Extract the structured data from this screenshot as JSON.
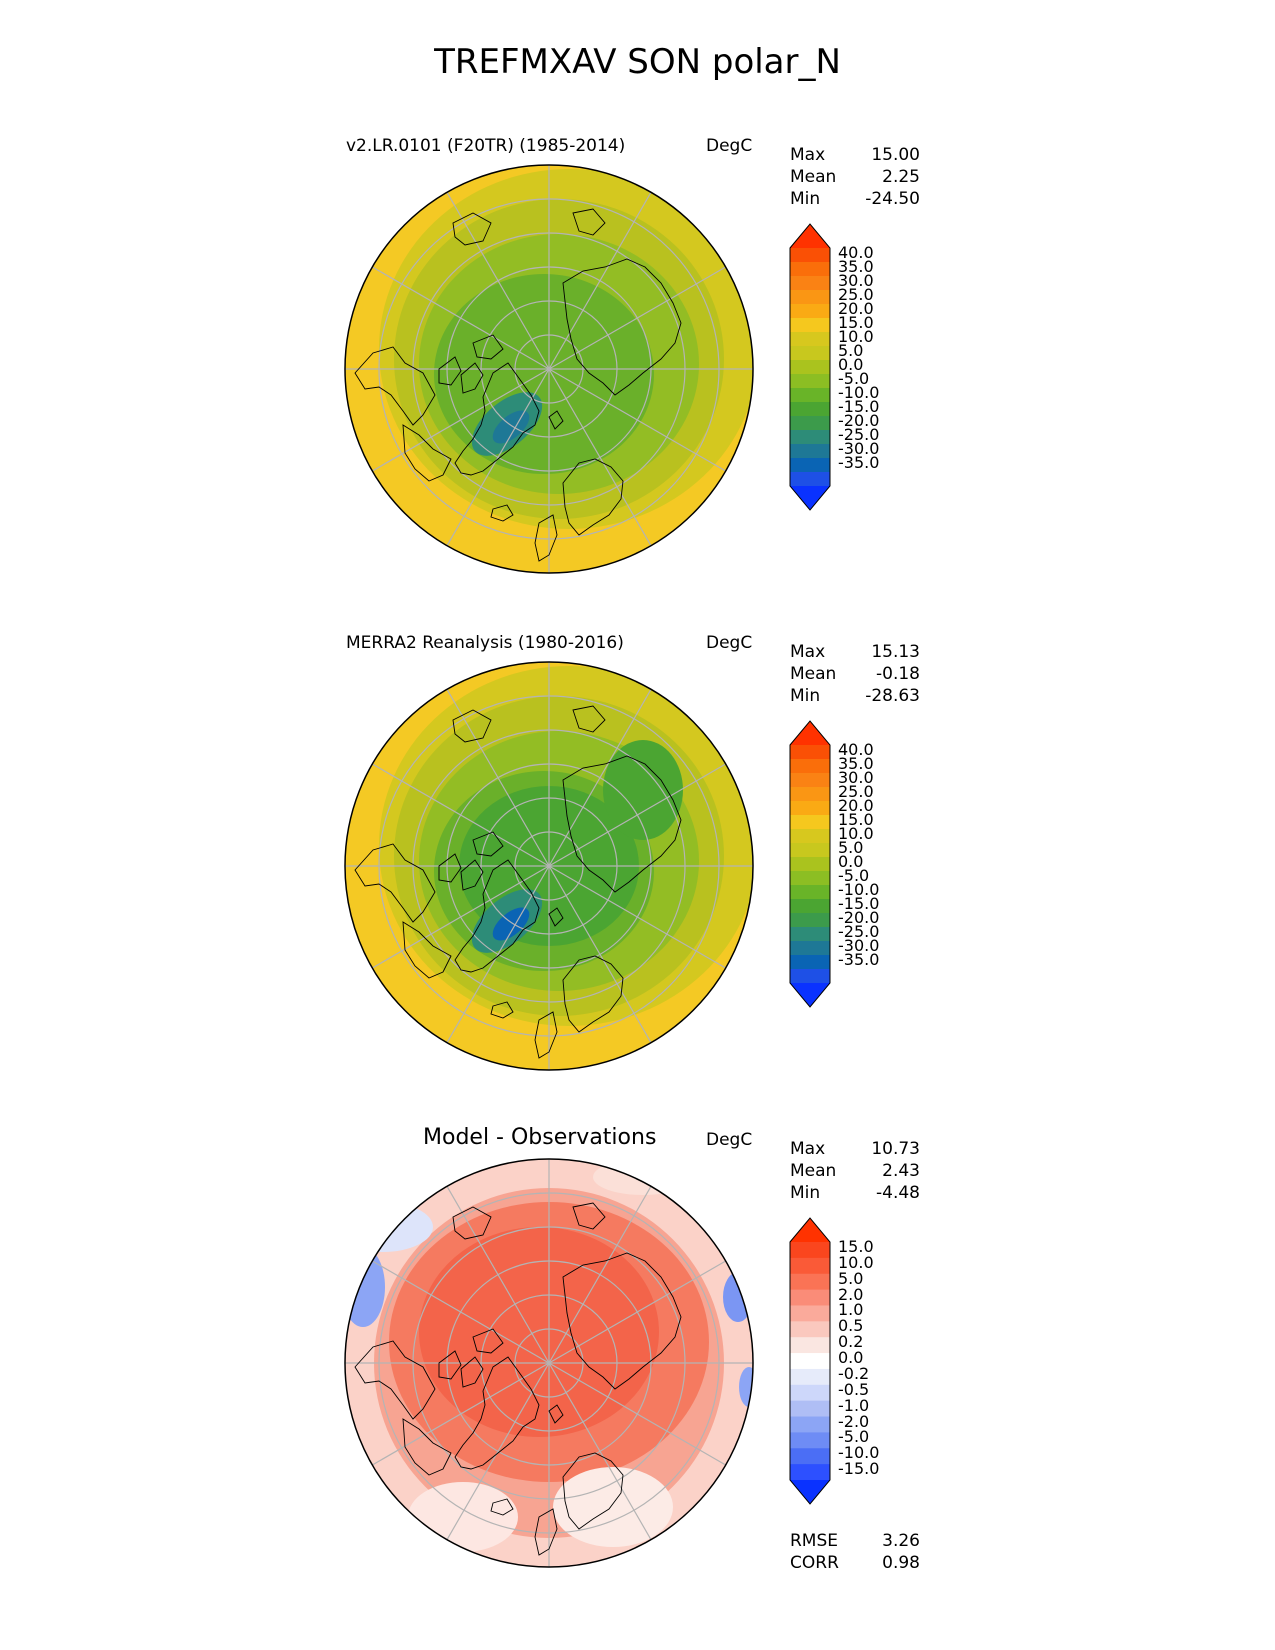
{
  "title": "TREFMXAV SON polar_N",
  "panels": [
    {
      "id": "model",
      "title": "v2.LR.0101 (F20TR) (1985-2014)",
      "units": "DegC",
      "stats": {
        "max_label": "Max",
        "max": "15.00",
        "mean_label": "Mean",
        "mean": "2.25",
        "min_label": "Min",
        "min": "-24.50"
      },
      "colorbar": [
        "40.0",
        "35.0",
        "30.0",
        "25.0",
        "20.0",
        "15.0",
        "10.0",
        "5.0",
        "0.0",
        "-5.0",
        "-10.0",
        "-15.0",
        "-20.0",
        "-25.0",
        "-30.0",
        "-35.0"
      ]
    },
    {
      "id": "obs",
      "title": "MERRA2 Reanalysis (1980-2016)",
      "units": "DegC",
      "stats": {
        "max_label": "Max",
        "max": "15.13",
        "mean_label": "Mean",
        "mean": "-0.18",
        "min_label": "Min",
        "min": "-28.63"
      },
      "colorbar": [
        "40.0",
        "35.0",
        "30.0",
        "25.0",
        "20.0",
        "15.0",
        "10.0",
        "5.0",
        "0.0",
        "-5.0",
        "-10.0",
        "-15.0",
        "-20.0",
        "-25.0",
        "-30.0",
        "-35.0"
      ]
    },
    {
      "id": "diff",
      "title": "Model - Observations",
      "units": "DegC",
      "stats": {
        "max_label": "Max",
        "max": "10.73",
        "mean_label": "Mean",
        "mean": "2.43",
        "min_label": "Min",
        "min": "-4.48"
      },
      "colorbar": [
        "15.0",
        "10.0",
        "5.0",
        "2.0",
        "1.0",
        "0.5",
        "0.2",
        "0.0",
        "-0.2",
        "-0.5",
        "-1.0",
        "-2.0",
        "-5.0",
        "-10.0",
        "-15.0"
      ],
      "metrics": {
        "rmse_label": "RMSE",
        "rmse": "3.26",
        "corr_label": "CORR",
        "corr": "0.98"
      }
    }
  ],
  "colors": {
    "temp_scale": [
      "#0a32ff",
      "#1e50e6",
      "#0a64b4",
      "#1e7896",
      "#2d8c78",
      "#3c9b4b",
      "#4ba532",
      "#69b428",
      "#8cbe23",
      "#aac31e",
      "#c8c81e",
      "#d7c81e",
      "#f5c81e",
      "#faaa14",
      "#fa9614",
      "#fa8214",
      "#fa6e0a",
      "#fa5005",
      "#ff3200"
    ],
    "diff_scale": [
      "#0a32ff",
      "#2d50ff",
      "#4b6ef5",
      "#6e8cf5",
      "#8ca5f5",
      "#afbef5",
      "#cdd7fa",
      "#e6ebfa",
      "#ffffff",
      "#fae6e1",
      "#fac8be",
      "#faaa9b",
      "#fa8c78",
      "#fa7355",
      "#fa5a37",
      "#fa461e",
      "#ff3200"
    ],
    "grid": "#b4b4b4",
    "coast": "#000000"
  }
}
